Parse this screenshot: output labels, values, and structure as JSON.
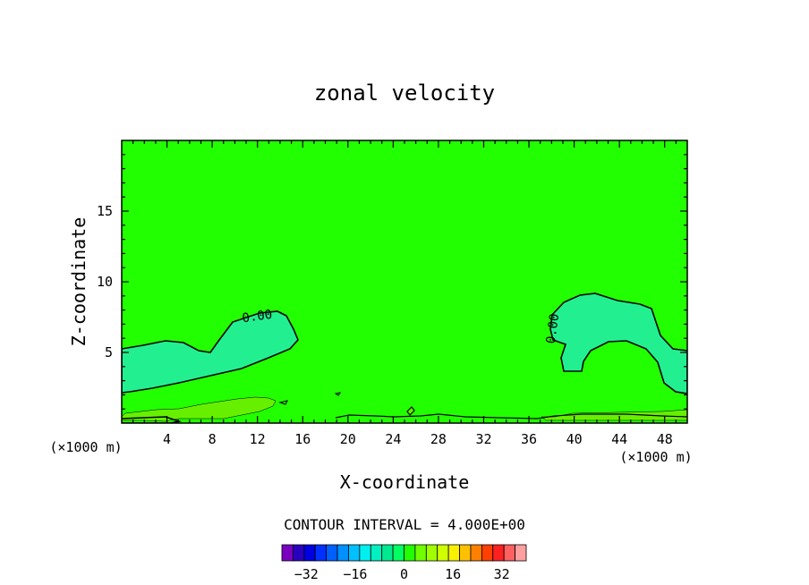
{
  "chart_data": {
    "type": "contour",
    "title": "zonal velocity",
    "xlabel": "X-coordinate",
    "ylabel": "Z-coordinate",
    "x_units": "(×1000 m)",
    "xlim": [
      0,
      50
    ],
    "ylim": [
      0,
      20
    ],
    "x_ticks": [
      4,
      8,
      12,
      16,
      20,
      24,
      28,
      32,
      36,
      40,
      44,
      48
    ],
    "y_ticks": [
      5,
      10,
      15
    ],
    "background_level_color": "#22ff00",
    "contour_label": "0.00",
    "contour_interval_text": "CONTOUR INTERVAL = 4.000E+00",
    "colorbar": {
      "ticks": [
        -32,
        -16,
        0,
        16,
        32
      ],
      "min": -40,
      "max": 40,
      "step": 4,
      "colors": [
        "#7a00c0",
        "#2a00c0",
        "#0000e0",
        "#0030ff",
        "#0060ff",
        "#0090ff",
        "#00c0ff",
        "#00f0f0",
        "#00f0c0",
        "#00e890",
        "#00ff60",
        "#22ff00",
        "#70ff00",
        "#a0ff00",
        "#d0ff00",
        "#f8f000",
        "#ffc000",
        "#ff8000",
        "#ff4000",
        "#ff2020",
        "#ff6060",
        "#ffa0a0"
      ]
    },
    "regions": {
      "slight_negative_color": "#22f090",
      "slight_positive_color": "#66f000"
    }
  }
}
